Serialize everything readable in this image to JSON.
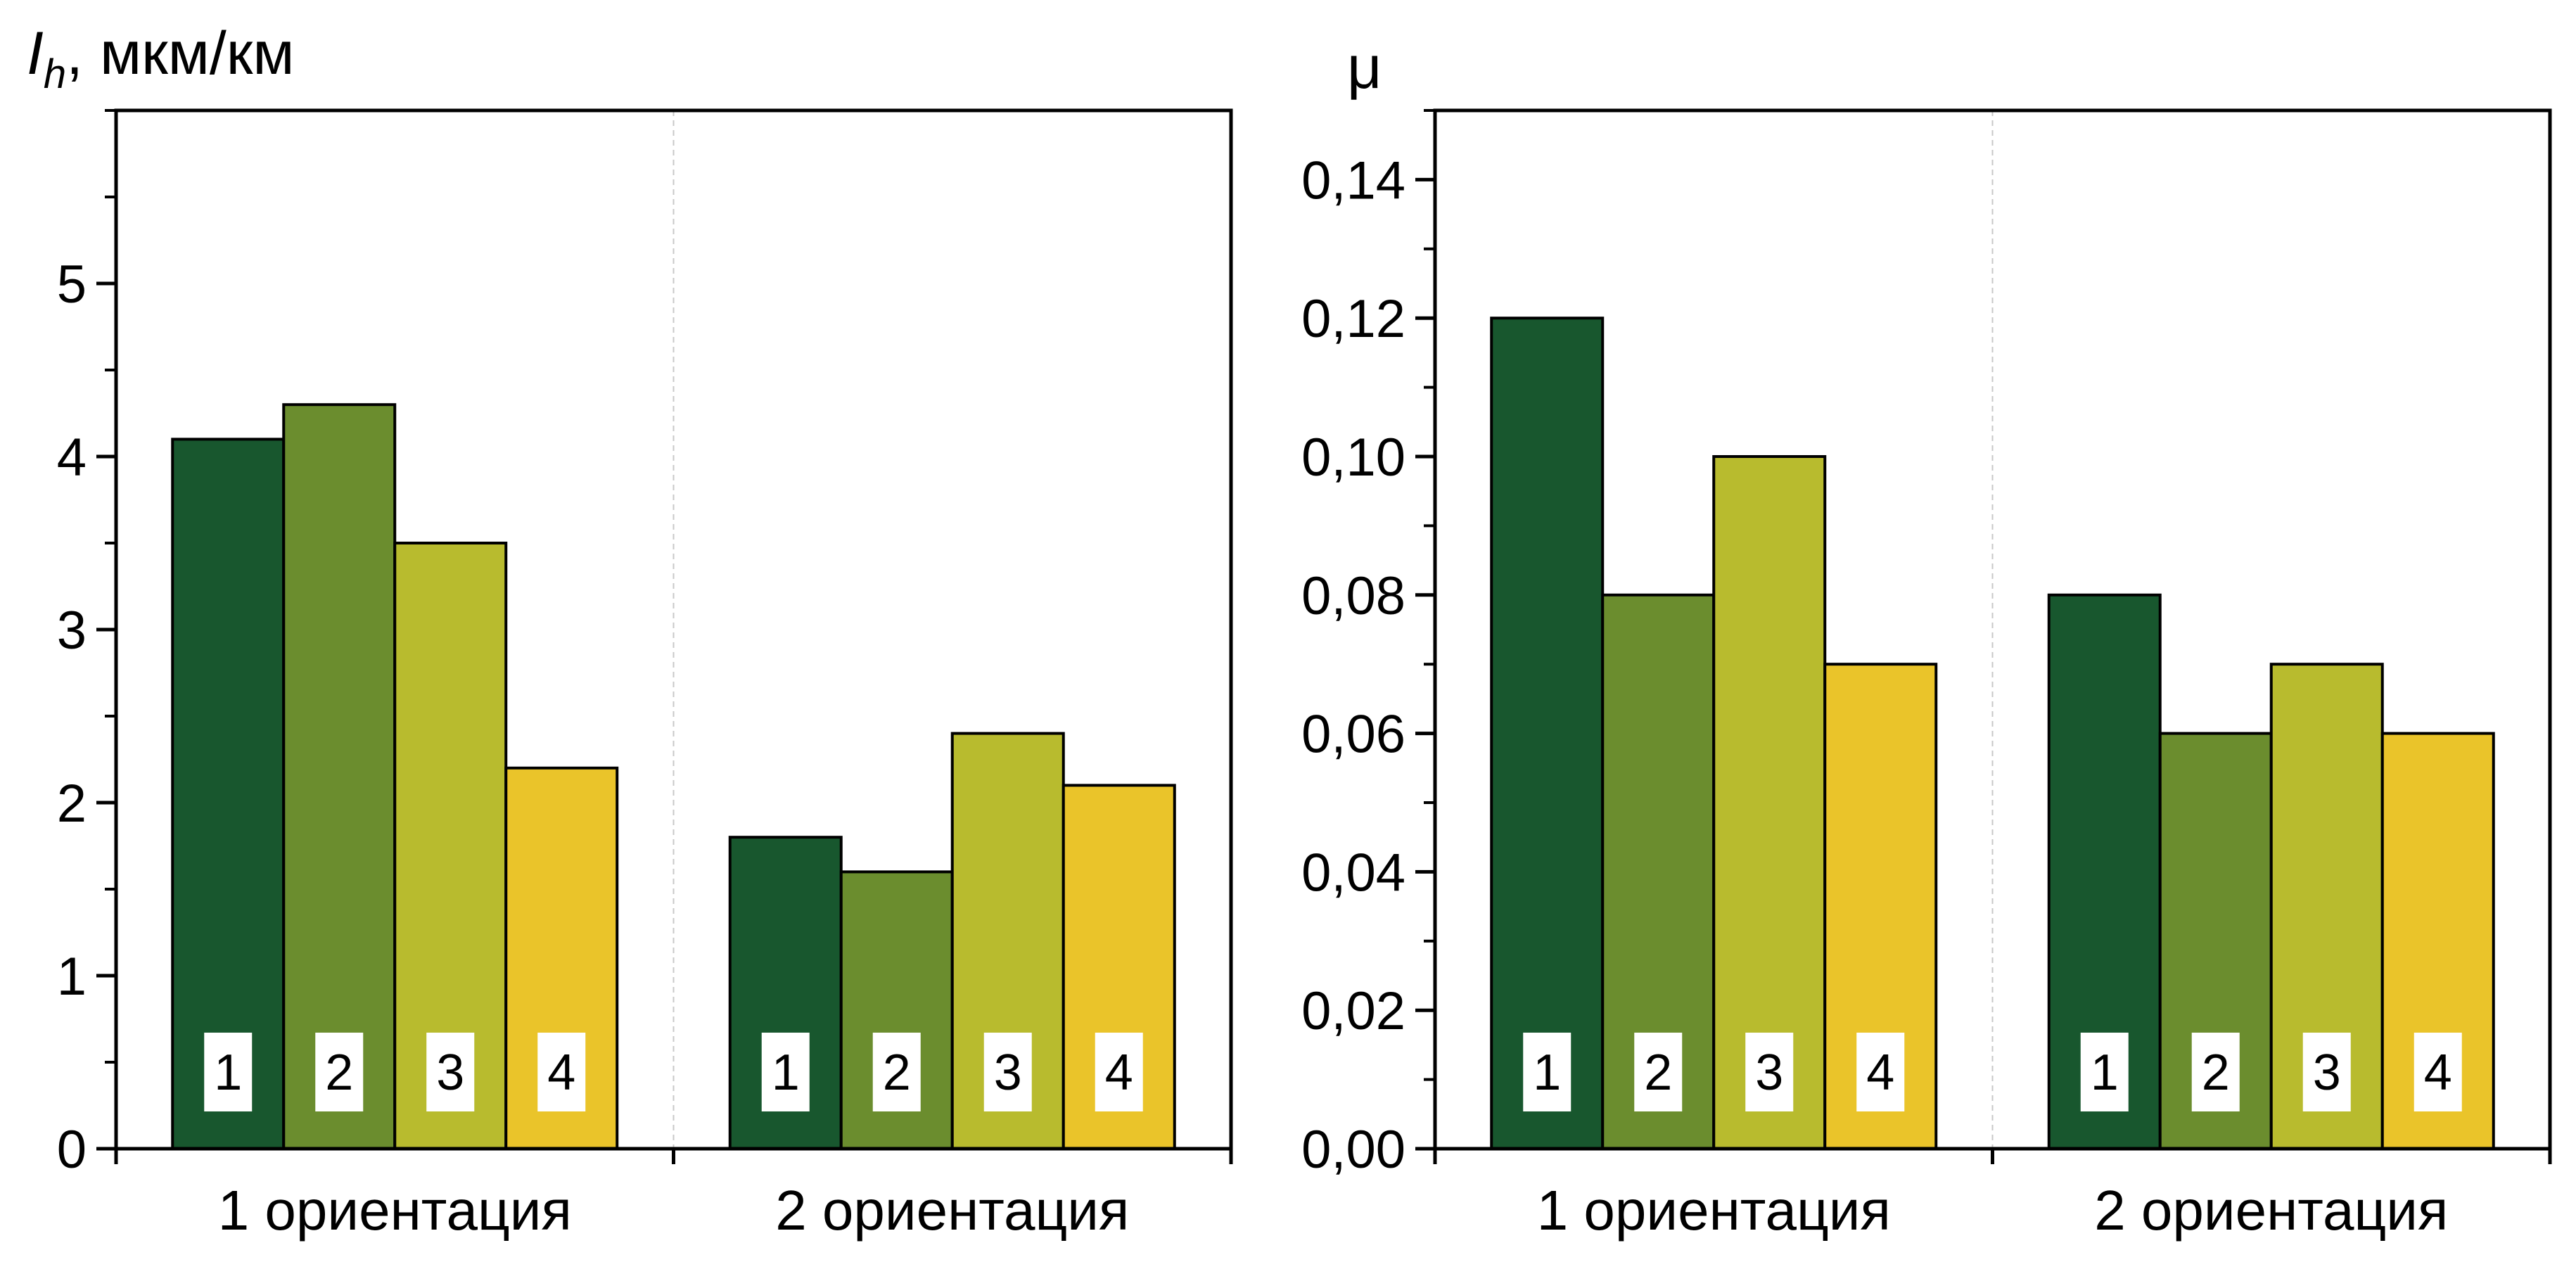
{
  "chart_data": [
    {
      "type": "bar",
      "ylabel": {
        "symbol": "I",
        "subscript": "h",
        "unit": ", мкм/км"
      },
      "categories": [
        "1 ориентация",
        "2 ориентация"
      ],
      "series": [
        {
          "values": [
            4.1,
            1.8
          ],
          "color": "#18572e",
          "marker": "1"
        },
        {
          "values": [
            4.3,
            1.6
          ],
          "color": "#6b8d2e",
          "marker": "2"
        },
        {
          "values": [
            3.5,
            2.4
          ],
          "color": "#b8bb2e",
          "marker": "3"
        },
        {
          "values": [
            2.2,
            2.1
          ],
          "color": "#eac42a",
          "marker": "4"
        }
      ],
      "ylim": [
        0,
        6
      ],
      "yticks": [
        0,
        1,
        2,
        3,
        4,
        5
      ],
      "ytick_labels": [
        "0",
        "1",
        "2",
        "3",
        "4",
        "5"
      ],
      "minor_step": 0.5,
      "grid": false,
      "legend": "none"
    },
    {
      "type": "bar",
      "ylabel": {
        "symbol": "μ"
      },
      "categories": [
        "1 ориентация",
        "2 ориентация"
      ],
      "series": [
        {
          "values": [
            0.12,
            0.08
          ],
          "color": "#18572e",
          "marker": "1"
        },
        {
          "values": [
            0.08,
            0.06
          ],
          "color": "#6b8d2e",
          "marker": "2"
        },
        {
          "values": [
            0.1,
            0.07
          ],
          "color": "#b8bb2e",
          "marker": "3"
        },
        {
          "values": [
            0.07,
            0.06
          ],
          "color": "#eac42a",
          "marker": "4"
        }
      ],
      "ylim": [
        0,
        0.15
      ],
      "yticks": [
        0,
        0.02,
        0.04,
        0.06,
        0.08,
        0.1,
        0.12,
        0.14
      ],
      "ytick_labels": [
        "0,00",
        "0,02",
        "0,04",
        "0,06",
        "0,08",
        "0,10",
        "0,12",
        "0,14"
      ],
      "minor_step": 0.01,
      "grid": false,
      "legend": "none"
    }
  ]
}
